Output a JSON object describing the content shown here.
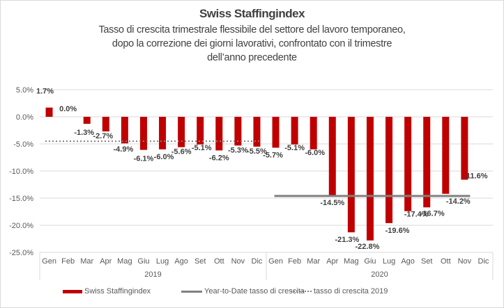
{
  "chart_data": {
    "type": "bar",
    "title": "Swiss Staffingindex",
    "subtitle_lines": [
      "Tasso di crescita trimestrale  flessibile del settore del lavoro temporaneo,",
      "dopo la correzione dei giorni lavorativi,  confrontato con il trimestre",
      "dell’anno  precedente"
    ],
    "categories": [
      "Gen",
      "Feb",
      "Mar",
      "Apr",
      "Mag",
      "Giu",
      "Lug",
      "Ago",
      "Set",
      "Ott",
      "Nov",
      "Dic",
      "Gen",
      "Feb",
      "Mar",
      "Apr",
      "Mag",
      "Giu",
      "Lug",
      "Ago",
      "Set",
      "Ott",
      "Nov",
      "Dic"
    ],
    "groups": [
      {
        "label": "2019",
        "start": 0,
        "end": 11
      },
      {
        "label": "2020",
        "start": 12,
        "end": 23
      }
    ],
    "series": [
      {
        "name": "Swiss Staffingindex",
        "type": "bar",
        "color": "#c00000",
        "values": [
          1.7,
          0.0,
          -1.3,
          -2.7,
          -4.9,
          -6.1,
          -6.0,
          -5.6,
          -5.1,
          -6.2,
          -5.3,
          -5.5,
          -5.7,
          -5.1,
          -6.0,
          -14.5,
          -21.3,
          -22.8,
          -19.6,
          -17.4,
          -16.7,
          -14.2,
          -11.6,
          null
        ],
        "labels": [
          "1.7%",
          "0.0%",
          "-1.3%",
          "-2.7%",
          "-4.9%",
          "-6.1%",
          "-6.0%",
          "-5.6%",
          "-5.1%",
          "-6.2%",
          "-5.3%",
          "-5.5%",
          "-5.7%",
          "-5.1%",
          "-6.0%",
          "-14.5%",
          "-21.3%",
          "-22.8%",
          "-19.6%",
          "-17.4%",
          "-16.7%",
          "-14.2%",
          "-11.6%",
          ""
        ]
      },
      {
        "name": "Year-to-Date tasso di crescita",
        "type": "line",
        "color": "#808080",
        "value": -14.6,
        "from_index": 12,
        "to_index": 22
      },
      {
        "name": "tasso di crescita 2019",
        "type": "line-dotted",
        "color": "#808080",
        "value": -4.5,
        "from_index": 0,
        "to_index": 11
      }
    ],
    "yticks": [
      "5.0%",
      "0.0%",
      "-5.0%",
      "-10.0%",
      "-15.0%",
      "-20.0%",
      "-25.0%"
    ],
    "ytick_values": [
      5,
      0,
      -5,
      -10,
      -15,
      -20,
      -25
    ],
    "ylim": [
      -25,
      5
    ],
    "xlabel": "",
    "ylabel": "",
    "grid": true,
    "legend_position": "bottom"
  }
}
